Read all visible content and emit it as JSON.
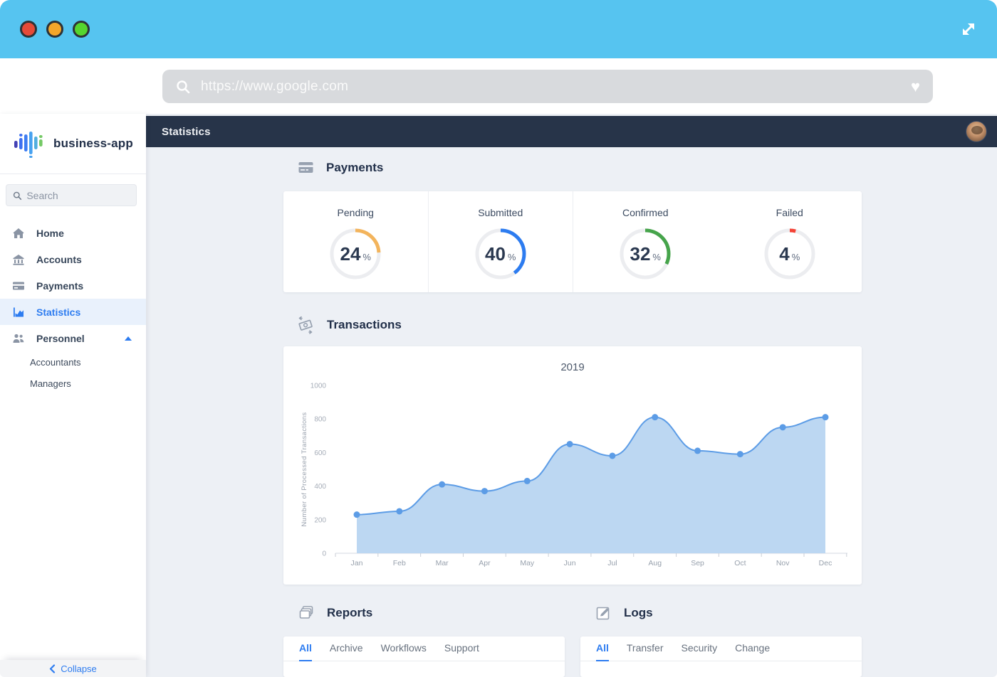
{
  "browser": {
    "url": "https://www.google.com",
    "traffic_lights": [
      "close",
      "minimize",
      "maximize"
    ],
    "icons": {
      "search": "magnifier",
      "favorite": "heart",
      "resize": "expand-arrows"
    },
    "heart_glyph": "♥"
  },
  "sidebar": {
    "brand": "business-app",
    "search": {
      "placeholder": "Search"
    },
    "items": [
      {
        "label": "Home",
        "icon": "home-icon",
        "active": false
      },
      {
        "label": "Accounts",
        "icon": "bank-icon",
        "active": false
      },
      {
        "label": "Payments",
        "icon": "credit-card-icon",
        "active": false
      },
      {
        "label": "Statistics",
        "icon": "chart-icon",
        "active": true
      },
      {
        "label": "Personnel",
        "icon": "people-icon",
        "active": false,
        "expanded": true
      }
    ],
    "subitems": [
      {
        "label": "Accountants"
      },
      {
        "label": "Managers"
      }
    ],
    "collapse_label": "Collapse"
  },
  "topbar": {
    "title": "Statistics"
  },
  "payments": {
    "title": "Payments",
    "gauges": [
      {
        "label": "Pending",
        "value": 24,
        "unit": "%",
        "color": "#f3b45c"
      },
      {
        "label": "Submitted",
        "value": 40,
        "unit": "%",
        "color": "#2d7cf0"
      },
      {
        "label": "Confirmed",
        "value": 32,
        "unit": "%",
        "color": "#46a44b"
      },
      {
        "label": "Failed",
        "value": 4,
        "unit": "%",
        "color": "#f44336"
      }
    ],
    "track_color": "#ecedf0"
  },
  "transactions": {
    "title": "Transactions"
  },
  "chart_data": {
    "type": "area",
    "title": "2019",
    "xlabel": "",
    "ylabel": "Number of Processed Transactions",
    "categories": [
      "Jan",
      "Feb",
      "Mar",
      "Apr",
      "May",
      "Jun",
      "Jul",
      "Aug",
      "Sep",
      "Oct",
      "Nov",
      "Dec"
    ],
    "values": [
      230,
      250,
      410,
      370,
      430,
      650,
      580,
      810,
      610,
      590,
      750,
      810
    ],
    "ylim": [
      0,
      1000
    ],
    "yticks": [
      0,
      200,
      400,
      600,
      800,
      1000
    ],
    "grid": false,
    "legend": "none",
    "line_color": "#5c9ce6",
    "fill_color": "#bcd7f2",
    "point_color": "#5c9ce6"
  },
  "reports": {
    "title": "Reports",
    "tabs": [
      {
        "label": "All",
        "active": true
      },
      {
        "label": "Archive",
        "active": false
      },
      {
        "label": "Workflows",
        "active": false
      },
      {
        "label": "Support",
        "active": false
      }
    ]
  },
  "logs": {
    "title": "Logs",
    "tabs": [
      {
        "label": "All",
        "active": true
      },
      {
        "label": "Transfer",
        "active": false
      },
      {
        "label": "Security",
        "active": false
      },
      {
        "label": "Change",
        "active": false
      }
    ]
  },
  "colors": {
    "titlebar": "#56c4f0",
    "topbar": "#273449",
    "accent_blue": "#2d7cf0",
    "content_bg": "#edf0f5"
  }
}
